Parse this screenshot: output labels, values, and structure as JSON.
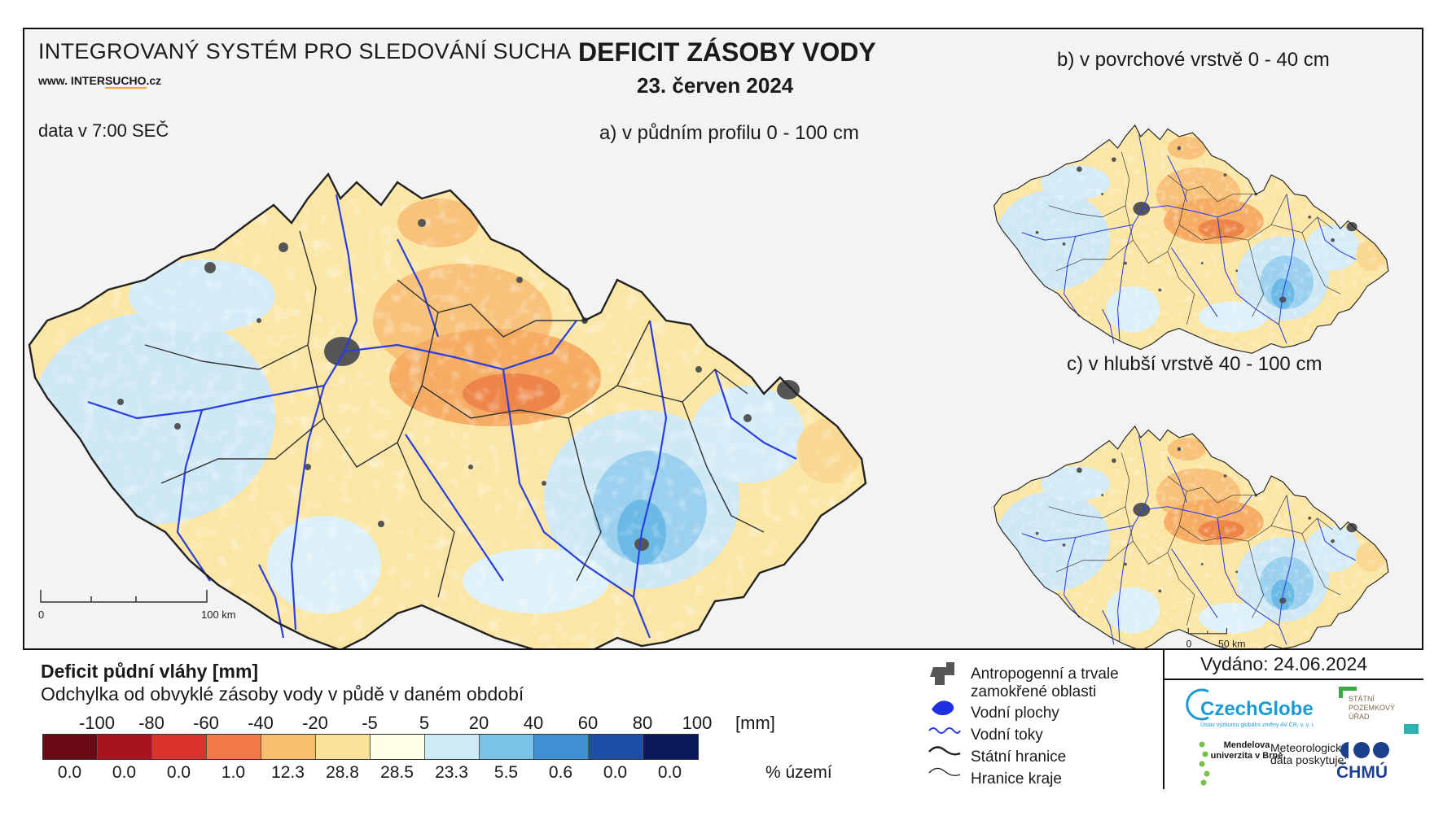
{
  "header": {
    "system_title": "INTEGROVANÝ SYSTÉM PRO SLEDOVÁNÍ SUCHA",
    "website_prefix": "www. INTER",
    "website_accent": "SUCHO",
    "website_suffix": ".cz",
    "data_time": "data v 7:00 SEČ",
    "main_title": "DEFICIT ZÁSOBY VODY",
    "main_date": "23. červen 2024"
  },
  "maps": {
    "a_label": "a) v půdním profilu 0 - 100 cm",
    "b_label": "b) v povrchové vrstvě 0 - 40 cm",
    "c_label": "c) v hlubší vrstvě 40 - 100 cm",
    "scale_main_start": "0",
    "scale_main_end": "100 km",
    "scale_small_start": "0",
    "scale_small_end": "50 km"
  },
  "legend": {
    "title": "Deficit půdní vláhy  [mm]",
    "subtitle": "Odchylka od obvyklé zásoby vody v půdě v daném období",
    "unit": "[mm]",
    "pct_unit": "% území",
    "scale_labels": [
      "-100",
      "-80",
      "-60",
      "-40",
      "-20",
      "-5",
      "5",
      "20",
      "40",
      "60",
      "80",
      "100"
    ],
    "classes": [
      {
        "color": "#6b0a17",
        "percent": "0.0"
      },
      {
        "color": "#a8141e",
        "percent": "0.0"
      },
      {
        "color": "#d9332b",
        "percent": "0.0"
      },
      {
        "color": "#f4774a",
        "percent": "1.0"
      },
      {
        "color": "#f8bd6f",
        "percent": "12.3"
      },
      {
        "color": "#f9e39a",
        "percent": "28.8"
      },
      {
        "color": "#fffde6",
        "percent": "28.5"
      },
      {
        "color": "#cdeaf7",
        "percent": "23.3"
      },
      {
        "color": "#79c2e8",
        "percent": "5.5"
      },
      {
        "color": "#3f8fd4",
        "percent": "0.6"
      },
      {
        "color": "#1e4fa8",
        "percent": "0.0"
      },
      {
        "color": "#0b1a5c",
        "percent": "0.0"
      }
    ]
  },
  "key": {
    "urban_line1": "Antropogenní a trvale",
    "urban_line2": "zamokřené oblasti",
    "water_bodies": "Vodní plochy",
    "rivers": "Vodní toky",
    "state_border": "Státní hranice",
    "region_border": "Hranice kraje"
  },
  "footer": {
    "issued": "Vydáno: 24.06.2024",
    "logo_czechglobe": "CzechGlobe",
    "logo_czechglobe_sub": "Ústav výzkumu globální změny AV ČR, v. v. i.",
    "logo_spu": "STÁTNÍ POZEMKOVÝ ÚŘAD",
    "logo_mendel": "Mendelova univerzita v Brně",
    "meteo_text": "Meteorologická data poskytuje:",
    "logo_chmu": "ČHMÚ"
  },
  "colors": {
    "border": "#111111",
    "river": "#2a3ee0",
    "urban": "#555555",
    "frame_bg": "#f3f3f3"
  }
}
